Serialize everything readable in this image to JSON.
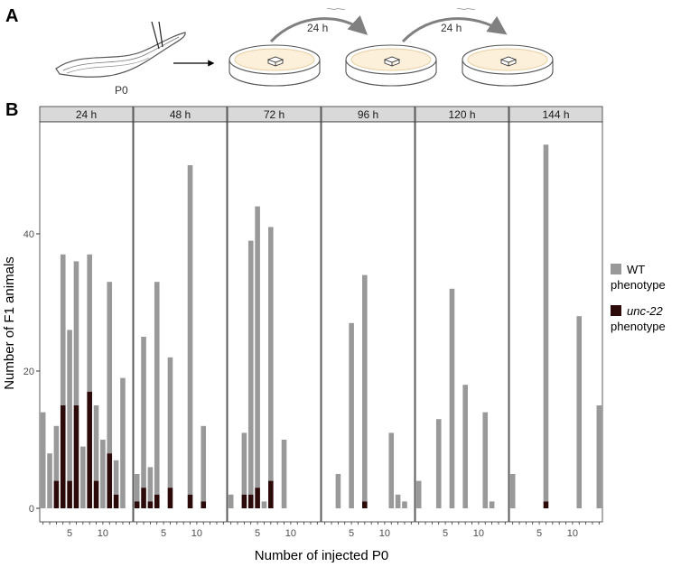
{
  "panel_a": {
    "label": "A",
    "worm_label": "P0",
    "transfer_labels": [
      "24 h",
      "24 h"
    ]
  },
  "panel_b": {
    "label": "B"
  },
  "colors": {
    "wt": "#999999",
    "unc22": "#2d0a0a",
    "strip": "#d9d9d9",
    "plate_fill": "#fdf0da"
  },
  "chart_data": {
    "type": "bar",
    "stacked": true,
    "xlabel": "Number of injected P0",
    "ylabel": "Number of F1 animals",
    "ylim": [
      0,
      55
    ],
    "y_ticks": [
      0,
      20,
      40
    ],
    "x_ticks": [
      5,
      10
    ],
    "xlim": [
      0.5,
      14.5
    ],
    "legend": {
      "placement": "right",
      "entries": [
        {
          "key": "wt",
          "line1": "WT",
          "line2": "phenotype"
        },
        {
          "key": "unc22",
          "line1": "unc-22",
          "line2": "phenotype"
        }
      ]
    },
    "facets": [
      {
        "label": "24 h",
        "totals": [
          14,
          8,
          12,
          37,
          26,
          36,
          9,
          37,
          15,
          10,
          33,
          7,
          19
        ],
        "unc22": [
          0,
          0,
          4,
          15,
          4,
          15,
          0,
          17,
          4,
          0,
          8,
          2,
          0
        ]
      },
      {
        "label": "48 h",
        "totals": [
          5,
          25,
          6,
          33,
          0,
          22,
          0,
          0,
          50,
          0,
          12
        ],
        "unc22": [
          1,
          3,
          1,
          2,
          0,
          3,
          0,
          0,
          2,
          0,
          1
        ]
      },
      {
        "label": "72 h",
        "totals": [
          2,
          0,
          11,
          39,
          44,
          1,
          41,
          0,
          10
        ],
        "unc22": [
          0,
          0,
          2,
          2,
          3,
          0,
          4,
          0,
          0
        ]
      },
      {
        "label": "96 h",
        "x": [
          3,
          5,
          7,
          11,
          12,
          13
        ],
        "totals": [
          5,
          27,
          34,
          11,
          2,
          1
        ],
        "unc22": [
          0,
          0,
          1,
          0,
          0,
          0
        ]
      },
      {
        "label": "120 h",
        "x": [
          1,
          4,
          6,
          8,
          11,
          12
        ],
        "totals": [
          4,
          13,
          32,
          18,
          14,
          1
        ],
        "unc22": [
          0,
          0,
          0,
          0,
          0,
          0
        ]
      },
      {
        "label": "144 h",
        "x": [
          1,
          6,
          11,
          14
        ],
        "totals": [
          5,
          53,
          28,
          15
        ],
        "unc22": [
          0,
          1,
          0,
          0
        ]
      }
    ]
  }
}
